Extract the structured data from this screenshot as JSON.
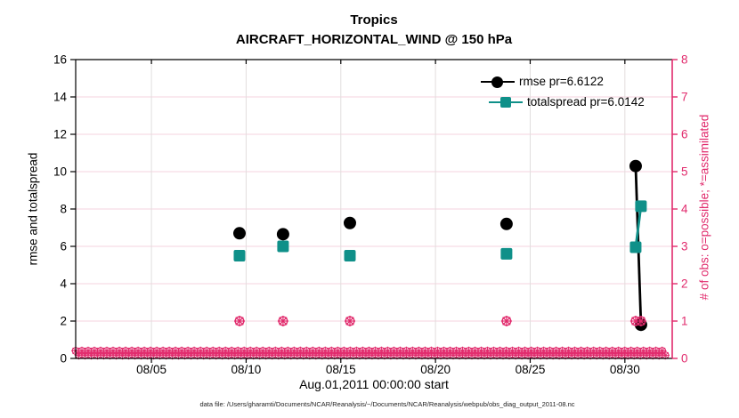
{
  "figure": {
    "title_line1": "Tropics",
    "title_line2": "AIRCRAFT_HORIZONTAL_WIND @ 150 hPa",
    "xlabel": "Aug.01,2011 00:00:00 start",
    "ylabel_left": "rmse and totalspread",
    "ylabel_right": "# of obs: o=possible; *=assimilated",
    "caption": "data file: /Users/gharamti/Documents/NCAR/Reanalysis/~/Documents/NCAR/Reanalysis/webpub/obs_diag_output_2011-08.nc"
  },
  "legend": {
    "items": [
      {
        "label": "rmse pr=6.6122",
        "color": "#000000",
        "marker": "circle"
      },
      {
        "label": "totalspread pr=6.0142",
        "color": "#0F9089",
        "marker": "square"
      }
    ]
  },
  "colors": {
    "rmse": "#000000",
    "totalspread": "#0F9089",
    "obs": "#E12A6C",
    "grid_horizontal": "#F6D3DF",
    "grid_vertical": "#E2DEDE",
    "axis_left": "#000000",
    "axis_right": "#E12A6C"
  },
  "chart_data": {
    "type": "line",
    "title": "Tropics / AIRCRAFT_HORIZONTAL_WIND @ 150 hPa",
    "xlabel": "Aug.01,2011 00:00:00 start",
    "ylabel_left": "rmse and totalspread",
    "ylabel_right": "# of obs: o=possible; *=assimilated",
    "legend_position": "top-right",
    "grid": true,
    "xlim_days_aug2011": [
      1,
      32.5
    ],
    "ylim_left": [
      0,
      16
    ],
    "ylim_right": [
      0,
      8
    ],
    "x_ticks": [
      {
        "day": 5,
        "label": "08/05"
      },
      {
        "day": 10,
        "label": "08/10"
      },
      {
        "day": 15,
        "label": "08/15"
      },
      {
        "day": 20,
        "label": "08/20"
      },
      {
        "day": 25,
        "label": "08/25"
      },
      {
        "day": 30,
        "label": "08/30"
      }
    ],
    "y_ticks_left": [
      0,
      2,
      4,
      6,
      8,
      10,
      12,
      14,
      16
    ],
    "y_ticks_right": [
      0,
      1,
      2,
      3,
      4,
      5,
      6,
      7,
      8
    ],
    "series": [
      {
        "name": "rmse",
        "legend": "rmse pr=6.6122",
        "color": "#000000",
        "marker": "circle",
        "points": [
          {
            "day": 9.65,
            "value": 6.7
          },
          {
            "day": 11.95,
            "value": 6.65
          },
          {
            "day": 15.48,
            "value": 7.25
          },
          {
            "day": 23.75,
            "value": 7.2
          },
          {
            "day": 30.57,
            "value": 10.3
          },
          {
            "day": 30.85,
            "value": 1.8
          }
        ]
      },
      {
        "name": "totalspread",
        "legend": "totalspread pr=6.0142",
        "color": "#0F9089",
        "marker": "square",
        "points": [
          {
            "day": 9.65,
            "value": 5.5
          },
          {
            "day": 11.95,
            "value": 6.0
          },
          {
            "day": 15.48,
            "value": 5.5
          },
          {
            "day": 23.75,
            "value": 5.6
          },
          {
            "day": 30.57,
            "value": 5.95
          },
          {
            "day": 30.85,
            "value": 8.15
          }
        ]
      }
    ],
    "observations": {
      "marker": "circle-with-asterisk",
      "assimilated_nonzero": [
        {
          "day": 9.65,
          "count": 1
        },
        {
          "day": 11.95,
          "count": 1
        },
        {
          "day": 15.48,
          "count": 1
        },
        {
          "day": 23.75,
          "count": 1
        },
        {
          "day": 30.57,
          "count": 1
        },
        {
          "day": 30.85,
          "count": 1
        }
      ],
      "zero_row": {
        "from_day": 1.0,
        "to_day": 32.3,
        "count_per_row": 95,
        "rows": 2,
        "value": 0
      }
    }
  }
}
